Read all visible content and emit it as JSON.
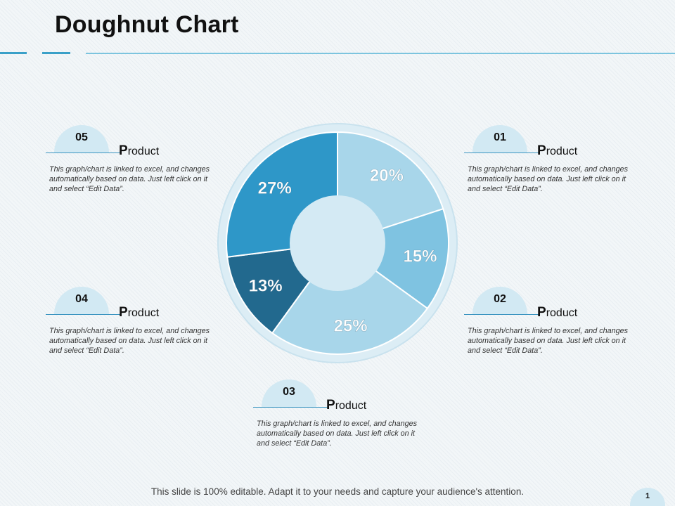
{
  "title": "Doughnut Chart",
  "footer": "This slide is 100% editable. Adapt it to your needs and capture your audience's attention.",
  "page_number": "1",
  "items": [
    {
      "number": "01",
      "heading_first": "P",
      "heading_rest": "roduct",
      "text": "This graph/chart is linked to excel, and changes automatically based on data. Just left click on it and select “Edit Data”."
    },
    {
      "number": "02",
      "heading_first": "P",
      "heading_rest": "roduct",
      "text": "This graph/chart is linked to excel, and changes automatically based on data. Just left click on it and select “Edit Data”."
    },
    {
      "number": "03",
      "heading_first": "P",
      "heading_rest": "roduct",
      "text": "This graph/chart is linked to excel, and changes automatically based on data. Just left click on it and select “Edit Data”."
    },
    {
      "number": "04",
      "heading_first": "P",
      "heading_rest": "roduct",
      "text": "This graph/chart is linked to excel, and changes automatically based on data. Just left click on it and select “Edit Data”."
    },
    {
      "number": "05",
      "heading_first": "P",
      "heading_rest": "roduct",
      "text": "This graph/chart is linked to excel, and changes automatically based on data. Just left click on it and select “Edit Data”."
    }
  ],
  "colors": {
    "accent": "#3aa0c8",
    "ring": "#dcedf5",
    "hole": "#d4eaf4"
  },
  "chart_data": {
    "type": "pie",
    "title": "",
    "start_angle_deg": 0,
    "direction": "clockwise",
    "slices": [
      {
        "value": 20,
        "label": "20%",
        "color": "#a8d6ea"
      },
      {
        "value": 15,
        "label": "15%",
        "color": "#7fc3e1"
      },
      {
        "value": 25,
        "label": "25%",
        "color": "#a8d6ea"
      },
      {
        "value": 13,
        "label": "13%",
        "color": "#22698e"
      },
      {
        "value": 27,
        "label": "27%",
        "color": "#2e97c8"
      }
    ]
  }
}
